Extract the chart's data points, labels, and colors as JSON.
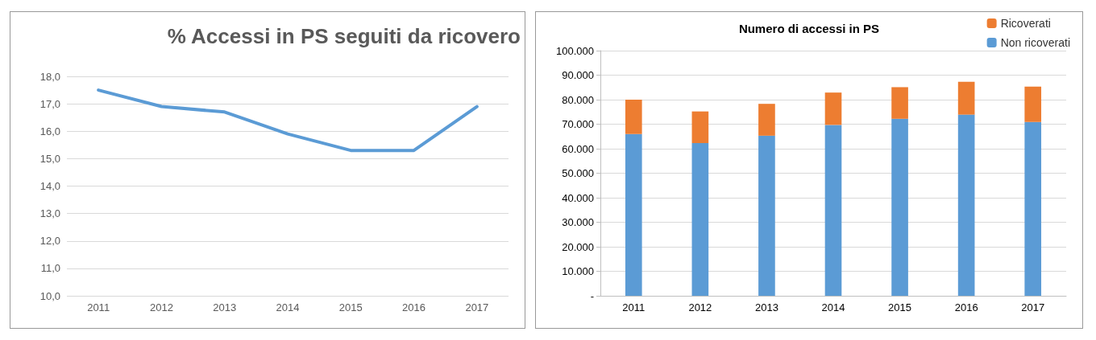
{
  "chart_data": [
    {
      "type": "line",
      "title": "% Accessi in PS seguiti da ricovero",
      "categories": [
        "2011",
        "2012",
        "2013",
        "2014",
        "2015",
        "2016",
        "2017"
      ],
      "series": [
        {
          "color": "#5b9bd5",
          "values": [
            17.5,
            16.9,
            16.7,
            15.9,
            15.3,
            15.3,
            16.9
          ]
        }
      ],
      "ylim": [
        10,
        18
      ],
      "yticks": [
        {
          "value": 10,
          "label": "10,0"
        },
        {
          "value": 11,
          "label": "11,0"
        },
        {
          "value": 12,
          "label": "12,0"
        },
        {
          "value": 13,
          "label": "13,0"
        },
        {
          "value": 14,
          "label": "14,0"
        },
        {
          "value": 15,
          "label": "15,0"
        },
        {
          "value": 16,
          "label": "16,0"
        },
        {
          "value": 17,
          "label": "17,0"
        },
        {
          "value": 18,
          "label": "18,0"
        }
      ],
      "grid": "y",
      "marker": "none",
      "line_style": "solid",
      "legend": false
    },
    {
      "type": "bar",
      "title": "Numero di accessi in PS",
      "categories": [
        "2011",
        "2012",
        "2013",
        "2014",
        "2015",
        "2016",
        "2017"
      ],
      "stacked": true,
      "series": [
        {
          "name": "Non ricoverati",
          "color": "#5b9bd5",
          "values": [
            66000,
            62300,
            65300,
            69700,
            72200,
            73900,
            70900
          ]
        },
        {
          "name": "Ricoverati",
          "color": "#ed7d31",
          "values": [
            14000,
            12900,
            13000,
            13200,
            12900,
            13400,
            14400
          ]
        }
      ],
      "ylim": [
        0,
        100000
      ],
      "yticks": [
        {
          "value": 0,
          "label": "-"
        },
        {
          "value": 10000,
          "label": "10.000"
        },
        {
          "value": 20000,
          "label": "20.000"
        },
        {
          "value": 30000,
          "label": "30.000"
        },
        {
          "value": 40000,
          "label": "40.000"
        },
        {
          "value": 50000,
          "label": "50.000"
        },
        {
          "value": 60000,
          "label": "60.000"
        },
        {
          "value": 70000,
          "label": "70.000"
        },
        {
          "value": 80000,
          "label": "80.000"
        },
        {
          "value": 90000,
          "label": "90.000"
        },
        {
          "value": 100000,
          "label": "100.000"
        }
      ],
      "grid": "y",
      "legend": "top right"
    }
  ]
}
